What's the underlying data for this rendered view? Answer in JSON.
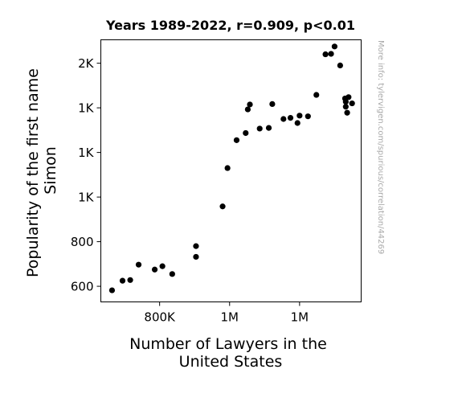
{
  "chart_data": {
    "type": "scatter",
    "title": "Years 1989-2022, r=0.909, p<0.01",
    "xlabel": [
      "Number of Lawyers in the",
      "United States"
    ],
    "ylabel": [
      "Popularity of the first name",
      "Simon"
    ],
    "watermark": "More info: tylervigen.com/spurious/correlation/44269",
    "x_ticks": [
      {
        "value": 800000,
        "label": "800K"
      },
      {
        "value": 900000,
        "label": "1M"
      },
      {
        "value": 1000000,
        "label": "1M"
      }
    ],
    "y_ticks": [
      {
        "value": 600,
        "label": "600"
      },
      {
        "value": 800,
        "label": "800"
      },
      {
        "value": 1000,
        "label": "1K"
      },
      {
        "value": 1200,
        "label": "1K"
      },
      {
        "value": 1400,
        "label": "1K"
      },
      {
        "value": 1600,
        "label": "2K"
      }
    ],
    "xlim": [
      716000,
      1088000
    ],
    "ylim": [
      530,
      1705
    ],
    "grid": false,
    "marker_color": "#000000",
    "points": [
      {
        "x": 732000,
        "y": 582
      },
      {
        "x": 747000,
        "y": 625
      },
      {
        "x": 758000,
        "y": 628
      },
      {
        "x": 770000,
        "y": 697
      },
      {
        "x": 793000,
        "y": 675
      },
      {
        "x": 804000,
        "y": 690
      },
      {
        "x": 818000,
        "y": 655
      },
      {
        "x": 852000,
        "y": 780
      },
      {
        "x": 852000,
        "y": 732
      },
      {
        "x": 890000,
        "y": 958
      },
      {
        "x": 897000,
        "y": 1130
      },
      {
        "x": 910000,
        "y": 1255
      },
      {
        "x": 923000,
        "y": 1287
      },
      {
        "x": 926000,
        "y": 1393
      },
      {
        "x": 929000,
        "y": 1415
      },
      {
        "x": 943000,
        "y": 1307
      },
      {
        "x": 956000,
        "y": 1310
      },
      {
        "x": 961000,
        "y": 1417
      },
      {
        "x": 977000,
        "y": 1350
      },
      {
        "x": 987000,
        "y": 1355
      },
      {
        "x": 997000,
        "y": 1332
      },
      {
        "x": 1000000,
        "y": 1365
      },
      {
        "x": 1012000,
        "y": 1362
      },
      {
        "x": 1024000,
        "y": 1458
      },
      {
        "x": 1037000,
        "y": 1640
      },
      {
        "x": 1045000,
        "y": 1642
      },
      {
        "x": 1050000,
        "y": 1675
      },
      {
        "x": 1058000,
        "y": 1590
      },
      {
        "x": 1065000,
        "y": 1442
      },
      {
        "x": 1066000,
        "y": 1427
      },
      {
        "x": 1066000,
        "y": 1405
      },
      {
        "x": 1068000,
        "y": 1378
      },
      {
        "x": 1070000,
        "y": 1448
      },
      {
        "x": 1075000,
        "y": 1420
      }
    ]
  }
}
